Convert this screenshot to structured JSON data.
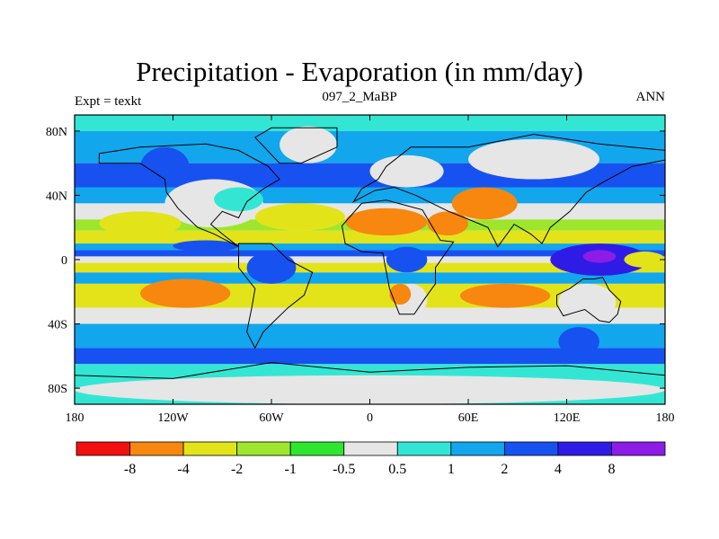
{
  "chart_data": {
    "type": "heatmap",
    "title": "Precipitation - Evaporation (in mm/day)",
    "center_subtitle": "097_2_MaBP",
    "left_subtitle": "Expt = texkt",
    "right_subtitle": "ANN",
    "x_ticks": [
      "180",
      "120W",
      "60W",
      "0",
      "60E",
      "120E",
      "180"
    ],
    "y_ticks": [
      "80N",
      "40N",
      "0",
      "40S",
      "80S"
    ],
    "xlim": [
      -180,
      180
    ],
    "ylim": [
      -90,
      90
    ],
    "colorbar": {
      "labels": [
        "-8",
        "-4",
        "-2",
        "-1",
        "-0.5",
        "0.5",
        "1",
        "2",
        "4",
        "8"
      ],
      "levels": [
        -8,
        -4,
        -2,
        -1,
        -0.5,
        0.5,
        1,
        2,
        4,
        8
      ],
      "colors": [
        "#f20f0f",
        "#f7870f",
        "#e3e31a",
        "#9ee62e",
        "#2ee62e",
        "#e6e6e6",
        "#33e6d4",
        "#12a6ed",
        "#1752f0",
        "#2e1ce6",
        "#8c1ce6"
      ]
    },
    "bands": [
      {
        "lat": [
          80,
          90
        ],
        "color": "#33e6d4"
      },
      {
        "lat": [
          60,
          80
        ],
        "color": "#12a6ed"
      },
      {
        "lat": [
          45,
          60
        ],
        "color": "#1752f0"
      },
      {
        "lat": [
          35,
          45
        ],
        "color": "#12a6ed"
      },
      {
        "lat": [
          25,
          35
        ],
        "color": "#e6e6e6"
      },
      {
        "lat": [
          18,
          25
        ],
        "color": "#9ee62e"
      },
      {
        "lat": [
          10,
          18
        ],
        "color": "#e3e31a"
      },
      {
        "lat": [
          6,
          10
        ],
        "color": "#12a6ed"
      },
      {
        "lat": [
          2,
          6
        ],
        "color": "#1752f0"
      },
      {
        "lat": [
          -2,
          2
        ],
        "color": "#e6e6e6"
      },
      {
        "lat": [
          -8,
          -2
        ],
        "color": "#e3e31a"
      },
      {
        "lat": [
          -15,
          -8
        ],
        "color": "#12a6ed"
      },
      {
        "lat": [
          -30,
          -15
        ],
        "color": "#e3e31a"
      },
      {
        "lat": [
          -40,
          -30
        ],
        "color": "#e6e6e6"
      },
      {
        "lat": [
          -55,
          -40
        ],
        "color": "#12a6ed"
      },
      {
        "lat": [
          -65,
          -55
        ],
        "color": "#1752f0"
      },
      {
        "lat": [
          -90,
          -65
        ],
        "color": "#33e6d4"
      }
    ],
    "regions": [
      {
        "name": "north-america-dry",
        "lon": [
          -125,
          -65
        ],
        "lat": [
          20,
          50
        ],
        "color": "#e6e6e6"
      },
      {
        "name": "north-america-wet",
        "lon": [
          -140,
          -110
        ],
        "lat": [
          45,
          70
        ],
        "color": "#1752f0"
      },
      {
        "name": "east-na-moist",
        "lon": [
          -95,
          -65
        ],
        "lat": [
          30,
          45
        ],
        "color": "#33e6d4"
      },
      {
        "name": "greenland",
        "lon": [
          -55,
          -20
        ],
        "lat": [
          60,
          83
        ],
        "color": "#e6e6e6"
      },
      {
        "name": "sahara",
        "lon": [
          -15,
          35
        ],
        "lat": [
          15,
          32
        ],
        "color": "#f7870f"
      },
      {
        "name": "arabia",
        "lon": [
          35,
          60
        ],
        "lat": [
          15,
          30
        ],
        "color": "#f7870f"
      },
      {
        "name": "central-asia",
        "lon": [
          50,
          90
        ],
        "lat": [
          25,
          45
        ],
        "color": "#f7870f"
      },
      {
        "name": "n-atlantic-dry",
        "lon": [
          -70,
          -15
        ],
        "lat": [
          18,
          35
        ],
        "color": "#e3e31a"
      },
      {
        "name": "n-pacific-dry",
        "lon": [
          -165,
          -115
        ],
        "lat": [
          15,
          30
        ],
        "color": "#e3e31a"
      },
      {
        "name": "e-pacific-itcz",
        "lon": [
          -120,
          -80
        ],
        "lat": [
          5,
          12
        ],
        "color": "#1752f0"
      },
      {
        "name": "siberia",
        "lon": [
          60,
          140
        ],
        "lat": [
          50,
          75
        ],
        "color": "#e6e6e6"
      },
      {
        "name": "europe",
        "lon": [
          0,
          45
        ],
        "lat": [
          45,
          65
        ],
        "color": "#e6e6e6"
      },
      {
        "name": "west-pacific-warm-pool",
        "lon": [
          110,
          170
        ],
        "lat": [
          -10,
          10
        ],
        "color": "#2e1ce6"
      },
      {
        "name": "wp-core",
        "lon": [
          130,
          150
        ],
        "lat": [
          -2,
          6
        ],
        "color": "#8c1ce6"
      },
      {
        "name": "south-america-wet",
        "lon": [
          -75,
          -45
        ],
        "lat": [
          -15,
          5
        ],
        "color": "#1752f0"
      },
      {
        "name": "central-africa-wet",
        "lon": [
          10,
          35
        ],
        "lat": [
          -8,
          8
        ],
        "color": "#1752f0"
      },
      {
        "name": "se-pacific-dry",
        "lon": [
          -140,
          -85
        ],
        "lat": [
          -30,
          -12
        ],
        "color": "#f7870f"
      },
      {
        "name": "southern-africa",
        "lon": [
          15,
          35
        ],
        "lat": [
          -35,
          -15
        ],
        "color": "#e6e6e6"
      },
      {
        "name": "s-africa-dry",
        "lon": [
          12,
          25
        ],
        "lat": [
          -28,
          -15
        ],
        "color": "#f7870f"
      },
      {
        "name": "indian-ocean-dry",
        "lon": [
          55,
          110
        ],
        "lat": [
          -30,
          -15
        ],
        "color": "#f7870f"
      },
      {
        "name": "australia",
        "lon": [
          115,
          150
        ],
        "lat": [
          -38,
          -15
        ],
        "color": "#e6e6e6"
      },
      {
        "name": "australia-south-wet",
        "lon": [
          115,
          140
        ],
        "lat": [
          -60,
          -42
        ],
        "color": "#1752f0"
      },
      {
        "name": "e-pacific-dry",
        "lon": [
          155,
          180
        ],
        "lat": [
          -5,
          5
        ],
        "color": "#e3e31a"
      },
      {
        "name": "antarctica",
        "lon": [
          -180,
          180
        ],
        "lat": [
          -90,
          -72
        ],
        "color": "#e6e6e6"
      }
    ]
  }
}
